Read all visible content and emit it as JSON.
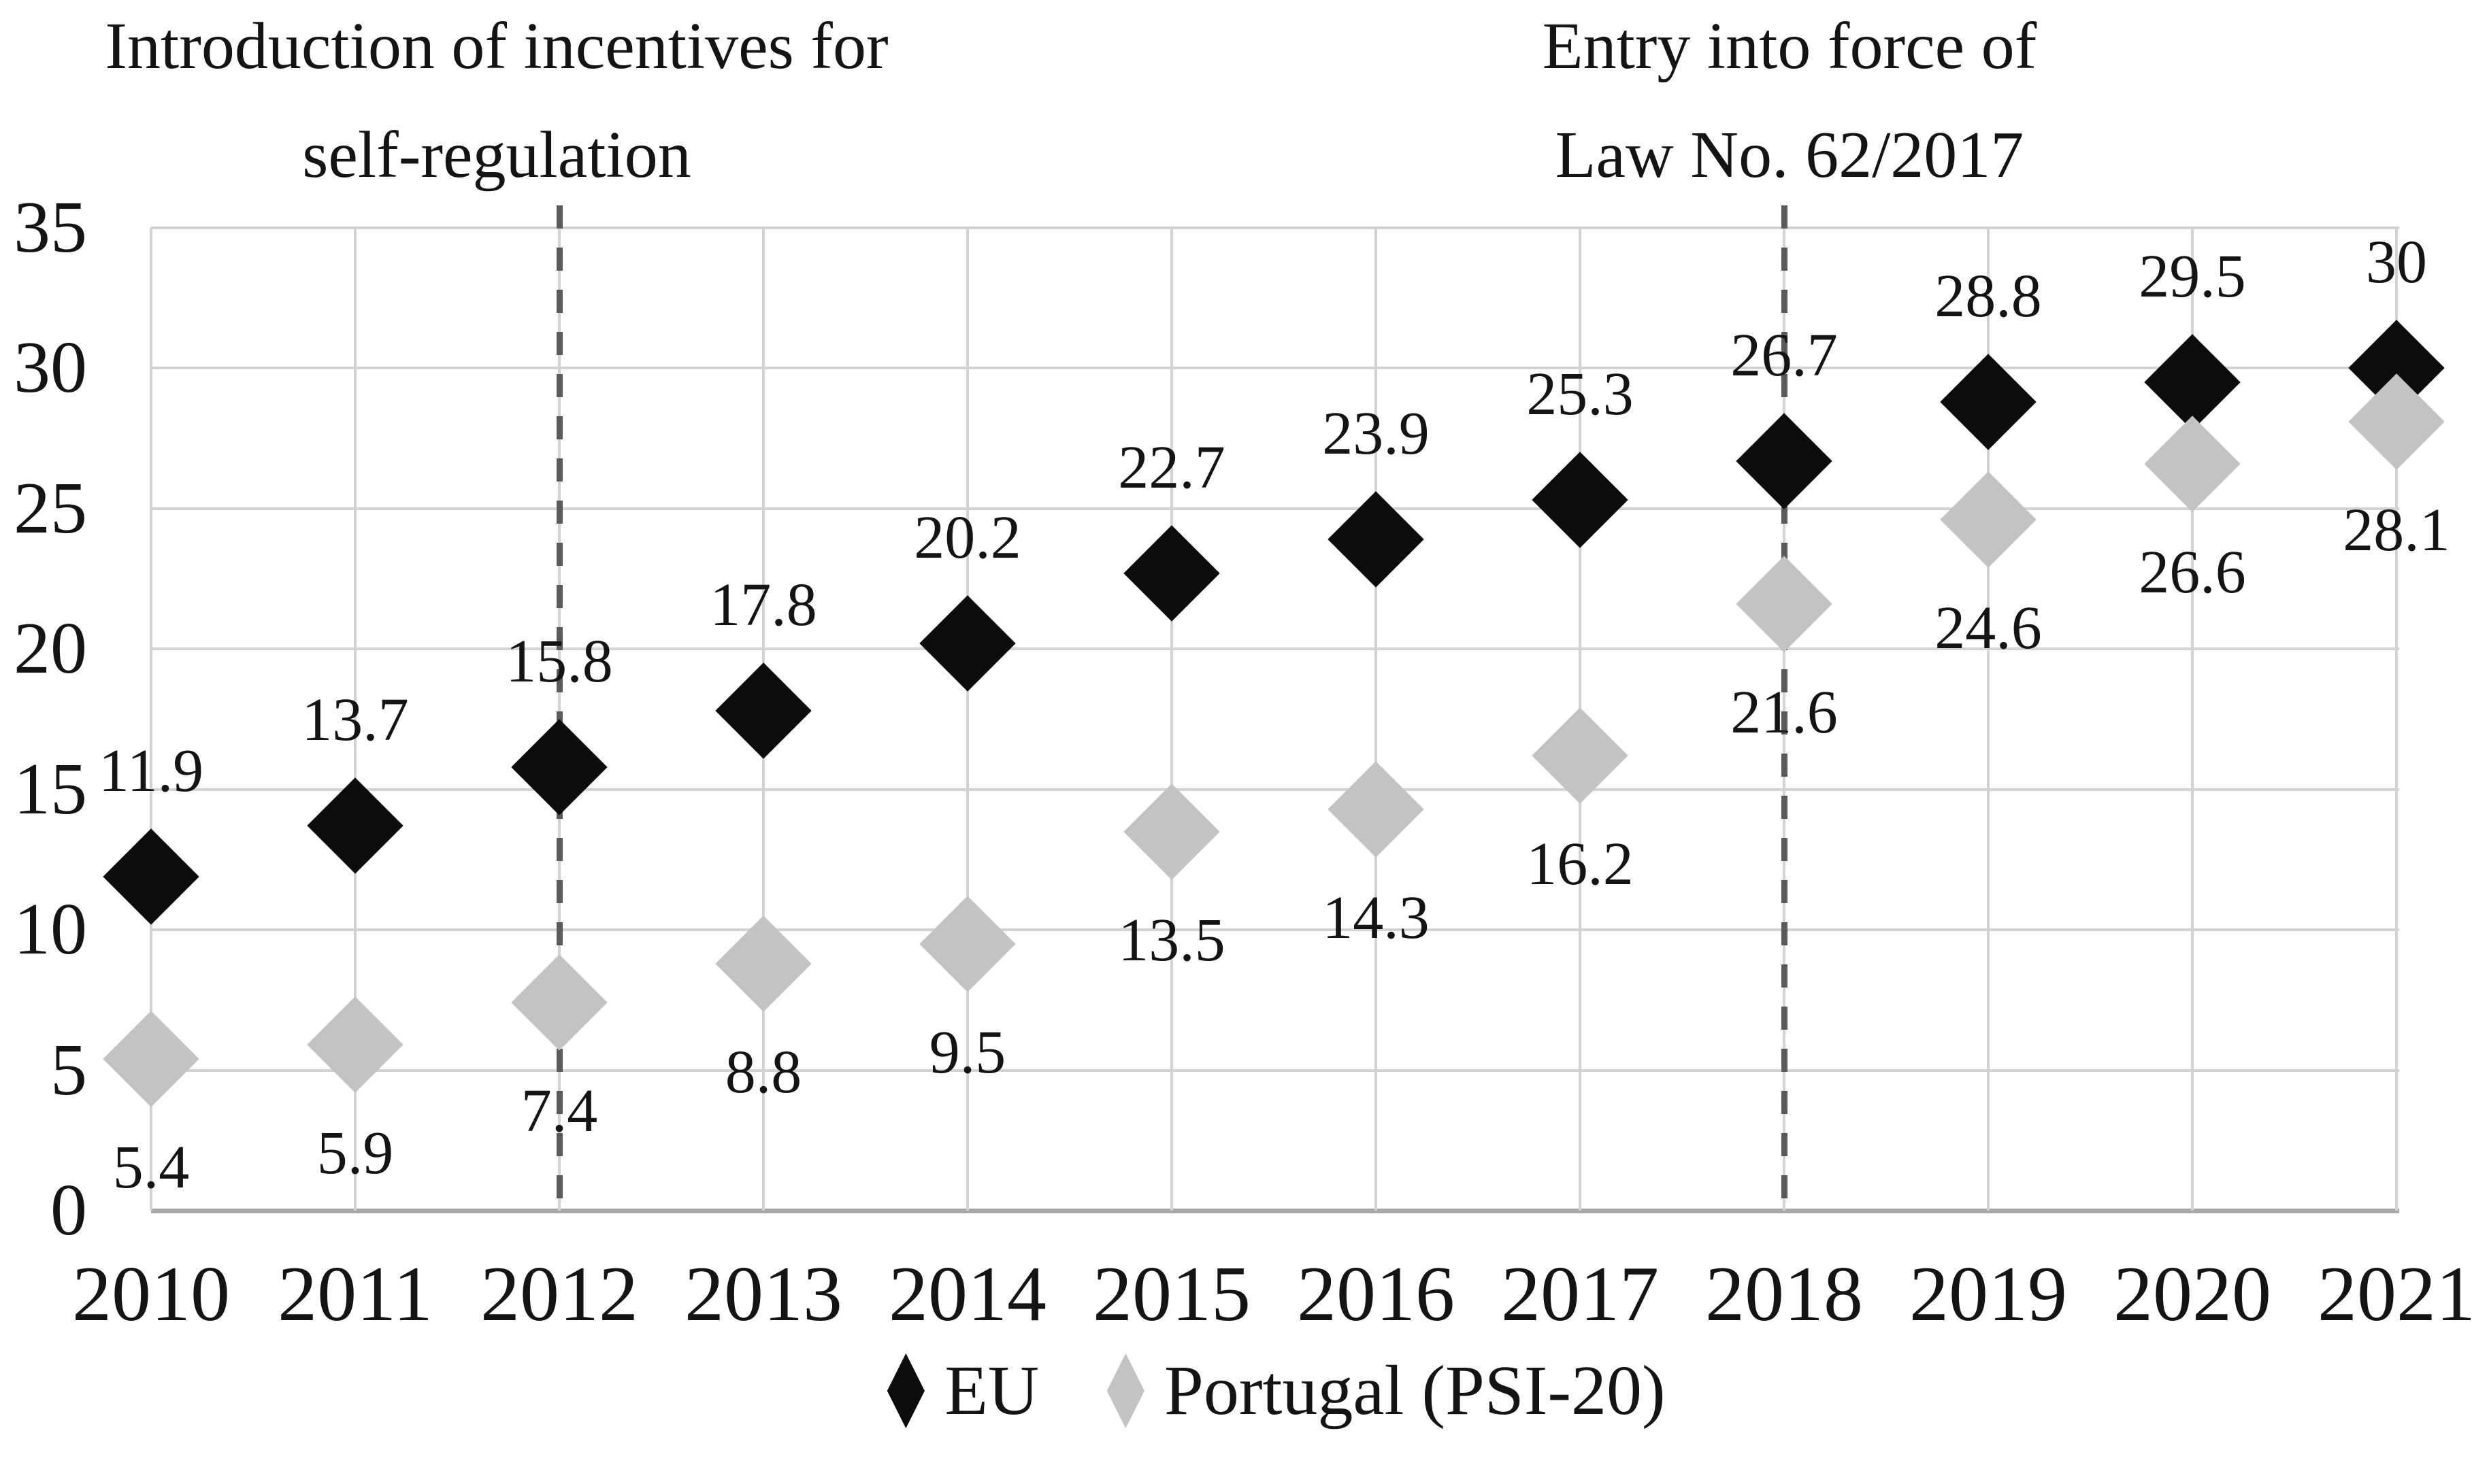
{
  "annotations": [
    {
      "line1": "Introduction of incentives for",
      "line2": "self-regulation",
      "at_year": "2012"
    },
    {
      "line1": "Entry into force of",
      "line2": "Law No. 62/2017",
      "at_year": "2018"
    }
  ],
  "chart_data": {
    "type": "scatter",
    "marker_shape": "diamond",
    "categories": [
      "2010",
      "2011",
      "2012",
      "2013",
      "2014",
      "2015",
      "2016",
      "2017",
      "2018",
      "2019",
      "2020",
      "2021"
    ],
    "series": [
      {
        "name": "EU",
        "color": "#0c0c0c",
        "label_position": "above",
        "values": [
          11.9,
          13.7,
          15.8,
          17.8,
          20.2,
          22.7,
          23.9,
          25.3,
          26.7,
          28.8,
          29.5,
          30
        ]
      },
      {
        "name": "Portugal (PSI-20)",
        "color": "#c3c3c3",
        "label_position": "below",
        "values": [
          5.4,
          5.9,
          7.4,
          8.8,
          9.5,
          13.5,
          14.3,
          16.2,
          21.6,
          24.6,
          26.6,
          28.1
        ]
      }
    ],
    "title": "",
    "xlabel": "",
    "ylabel": "",
    "ylim": [
      0,
      35
    ],
    "ytick_step": 5,
    "yticks": [
      0,
      5,
      10,
      15,
      20,
      25,
      30,
      35
    ],
    "grid": true,
    "reference_lines": [
      {
        "x": "2012",
        "style": "dashed"
      },
      {
        "x": "2018",
        "style": "dashed"
      }
    ],
    "legend_position": "bottom",
    "colors": {
      "gridline": "#d3d3d3",
      "axis_line": "#a8a8a8",
      "reference_line": "#5a5a5a",
      "text": "#141414"
    }
  }
}
